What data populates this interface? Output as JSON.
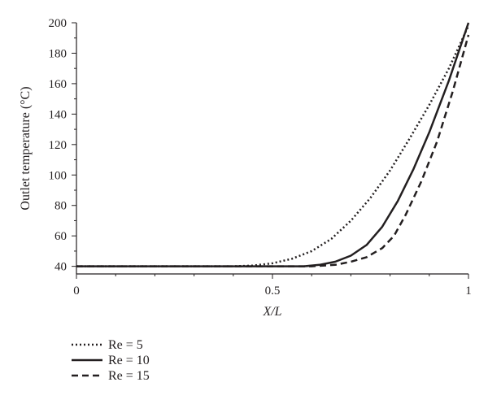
{
  "chart_data": {
    "type": "line",
    "xlabel": "X/L",
    "ylabel": "Outlet temperature (°C)",
    "xlim": [
      0,
      1
    ],
    "ylim": [
      35,
      200
    ],
    "x_ticks": [
      0,
      0.5,
      1
    ],
    "x_tick_labels": [
      "0",
      "0.5",
      "1"
    ],
    "y_ticks": [
      40,
      60,
      80,
      100,
      120,
      140,
      160,
      180,
      200
    ],
    "y_tick_labels": [
      "40",
      "60",
      "80",
      "100",
      "120",
      "140",
      "160",
      "180",
      "200"
    ],
    "grid": false,
    "legend_position": "below-left",
    "series": [
      {
        "name": "Re = 5",
        "line_style": "dotted",
        "color": "#231f20",
        "x": [
          0.0,
          0.4,
          0.45,
          0.5,
          0.55,
          0.6,
          0.65,
          0.7,
          0.75,
          0.8,
          0.85,
          0.9,
          0.95,
          1.0
        ],
        "y": [
          40,
          40,
          40.5,
          42,
          45,
          50,
          58,
          70,
          85,
          103,
          124,
          146,
          170,
          198
        ]
      },
      {
        "name": "Re = 10",
        "line_style": "solid",
        "color": "#231f20",
        "x": [
          0.0,
          0.58,
          0.62,
          0.66,
          0.7,
          0.74,
          0.78,
          0.82,
          0.86,
          0.9,
          0.95,
          1.0
        ],
        "y": [
          40,
          40,
          41,
          43,
          47,
          54,
          66,
          83,
          104,
          128,
          162,
          200
        ]
      },
      {
        "name": "Re = 15",
        "line_style": "dashed",
        "color": "#231f20",
        "x": [
          0.0,
          0.6,
          0.66,
          0.7,
          0.74,
          0.78,
          0.81,
          0.84,
          0.88,
          0.92,
          0.96,
          1.0
        ],
        "y": [
          40,
          40,
          41,
          43,
          46,
          52,
          60,
          74,
          96,
          122,
          155,
          192
        ]
      }
    ]
  }
}
